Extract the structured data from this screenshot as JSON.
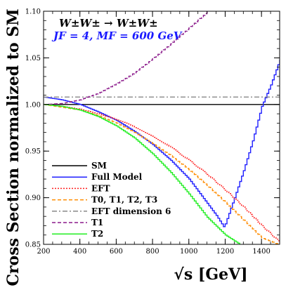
{
  "chart_data": {
    "type": "line",
    "ylabel": "Cross Section normalized to SM",
    "xlabel": "√s [GeV]",
    "annotations": {
      "process": "W±W± → W±W±",
      "parameters": "JF = 4, MF = 600 GeV"
    },
    "xlim": [
      200,
      1500
    ],
    "ylim": [
      0.85,
      1.1
    ],
    "xticks": [
      200,
      400,
      600,
      800,
      1000,
      1200,
      1400
    ],
    "yticks": [
      "0.85",
      "0.90",
      "0.95",
      "1.00",
      "1.05",
      "1.10"
    ],
    "legend_position": "bottom-left",
    "series": [
      {
        "name": "SM",
        "color": "#000000",
        "dash": "solid",
        "step": false,
        "x": [
          200,
          1500
        ],
        "y": [
          1.0,
          1.0
        ]
      },
      {
        "name": "Full Model",
        "color": "#1f1fff",
        "dash": "solid",
        "step": true,
        "x": [
          200,
          300,
          400,
          500,
          600,
          700,
          800,
          900,
          1000,
          1050,
          1100,
          1150,
          1190,
          1200,
          1250,
          1300,
          1350,
          1400,
          1450,
          1500
        ],
        "y": [
          1.008,
          1.005,
          1.0,
          0.992,
          0.983,
          0.971,
          0.957,
          0.94,
          0.92,
          0.907,
          0.894,
          0.881,
          0.869,
          0.872,
          0.9,
          0.929,
          0.961,
          0.998,
          1.021,
          1.048
        ]
      },
      {
        "name": "EFT",
        "color": "#ff2020",
        "dash": "2,2",
        "step": true,
        "x": [
          200,
          300,
          400,
          500,
          600,
          700,
          800,
          900,
          1000,
          1100,
          1200,
          1300,
          1400,
          1500
        ],
        "y": [
          1.0,
          0.998,
          0.995,
          0.99,
          0.984,
          0.976,
          0.966,
          0.954,
          0.94,
          0.925,
          0.908,
          0.89,
          0.87,
          0.852
        ]
      },
      {
        "name": "T0, T1, T2, T3",
        "color": "#ff8c00",
        "dash": "5,3",
        "step": true,
        "x": [
          200,
          300,
          400,
          500,
          600,
          700,
          800,
          900,
          1000,
          1100,
          1200,
          1300,
          1400,
          1490
        ],
        "y": [
          1.0,
          0.997,
          0.994,
          0.988,
          0.98,
          0.97,
          0.958,
          0.945,
          0.93,
          0.913,
          0.895,
          0.876,
          0.857,
          0.85
        ]
      },
      {
        "name": "EFT dimension 6",
        "color": "#888888",
        "dash": "7,3,2,3",
        "step": false,
        "x": [
          200,
          1500
        ],
        "y": [
          1.008,
          1.008
        ]
      },
      {
        "name": "T1",
        "color": "#8b1a8b",
        "dash": "5,3",
        "step": true,
        "x": [
          200,
          300,
          400,
          500,
          600,
          700,
          800,
          900,
          1000,
          1100,
          1150
        ],
        "y": [
          1.0,
          1.001,
          1.005,
          1.012,
          1.022,
          1.034,
          1.049,
          1.065,
          1.082,
          1.099,
          1.108
        ]
      },
      {
        "name": "T2",
        "color": "#22ee22",
        "dash": "solid",
        "step": true,
        "x": [
          200,
          300,
          400,
          500,
          600,
          700,
          800,
          900,
          1000,
          1100,
          1200,
          1280
        ],
        "y": [
          1.0,
          0.998,
          0.994,
          0.987,
          0.977,
          0.964,
          0.947,
          0.927,
          0.904,
          0.879,
          0.86,
          0.85
        ]
      }
    ]
  }
}
